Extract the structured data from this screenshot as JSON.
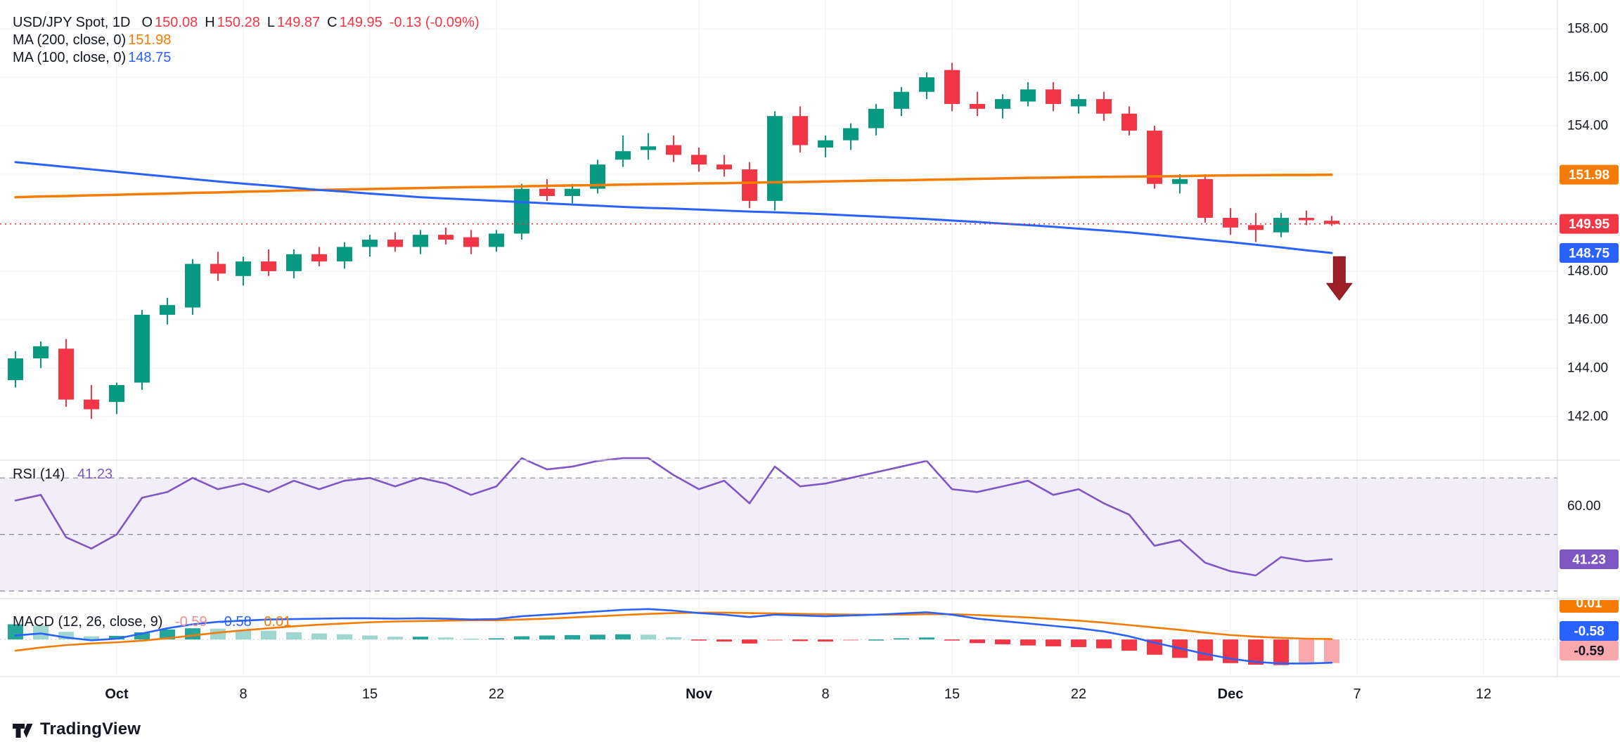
{
  "legend": {
    "title": "USD/JPY Spot, 1D",
    "ohlc": [
      {
        "k": "O",
        "v": "150.08"
      },
      {
        "k": "H",
        "v": "150.28"
      },
      {
        "k": "L",
        "v": "149.87"
      },
      {
        "k": "C",
        "v": "149.95"
      }
    ],
    "change": "-0.13 (-0.09%)",
    "ma_rows": [
      {
        "label": "MA (200, close, 0)",
        "value": "151.98"
      },
      {
        "label": "MA (100, close, 0)",
        "value": "148.75"
      }
    ]
  },
  "rsi_legend": {
    "label": "RSI (14)",
    "value": "41.23"
  },
  "macd_legend": {
    "label": "MACD (12, 26, close, 9)",
    "values": [
      {
        "text": "-0.59"
      },
      {
        "text": "-0.58"
      },
      {
        "text": "0.01"
      }
    ]
  },
  "footer": {
    "brand": "TradingView"
  },
  "colors": {
    "up": "#089981",
    "down": "#f23645",
    "ma200": "#f57c00",
    "ma100": "#2962ff",
    "rsi": "#7e57c2",
    "macd_line": "#2962ff",
    "signal_line": "#f57c00",
    "hist_pos": "#26a69a",
    "hist_pos_weak": "#9fd6cf",
    "hist_neg": "#f23645",
    "hist_neg_weak": "#f9a8ae",
    "last_price": "#f23645",
    "band_fill": "rgba(126,87,194,0.10)",
    "band_dash": "#83868f",
    "grid": "#f0f3fa",
    "axis_text": "#131722",
    "separator": "#d6d9e0",
    "arrow": "#9c1f28"
  },
  "chart_data": {
    "type": "candlestick",
    "title": "USD/JPY Spot, 1D",
    "ohlc_legend": {
      "open": 150.08,
      "high": 150.28,
      "low": 149.87,
      "close": 149.95,
      "change": -0.13,
      "change_pct": -0.09
    },
    "overlays": [
      {
        "name": "MA (200, close, 0)",
        "value": 151.98
      },
      {
        "name": "MA (100, close, 0)",
        "value": 148.75
      }
    ],
    "price_pane": {
      "ylim": [
        140.4,
        158.9
      ],
      "grid_ticks": [
        142,
        144,
        146,
        148,
        150,
        152,
        154,
        156,
        158
      ],
      "label_ticks": [
        {
          "value": 158,
          "label": "158.00"
        },
        {
          "value": 156,
          "label": "156.00"
        },
        {
          "value": 154,
          "label": "154.00"
        },
        {
          "value": 148,
          "label": "148.00"
        },
        {
          "value": 146,
          "label": "146.00"
        },
        {
          "value": 144,
          "label": "144.00"
        },
        {
          "value": 142,
          "label": "142.00"
        }
      ],
      "badges": [
        {
          "value": 151.98,
          "label": "151.98",
          "bg": "#f57c00",
          "fg": "#ffffff"
        },
        {
          "value": 149.95,
          "label": "149.95",
          "bg": "#f23645",
          "fg": "#ffffff"
        },
        {
          "value": 148.75,
          "label": "148.75",
          "bg": "#2962ff",
          "fg": "#ffffff"
        }
      ],
      "last_price": 149.95
    },
    "candles": [
      [
        143.5,
        144.7,
        143.2,
        144.4
      ],
      [
        144.4,
        145.1,
        144.0,
        144.9
      ],
      [
        144.8,
        145.2,
        142.4,
        142.7
      ],
      [
        142.7,
        143.3,
        141.9,
        142.3
      ],
      [
        142.6,
        143.4,
        142.1,
        143.3
      ],
      [
        143.4,
        146.4,
        143.1,
        146.2
      ],
      [
        146.2,
        146.9,
        145.8,
        146.6
      ],
      [
        146.5,
        148.5,
        146.2,
        148.3
      ],
      [
        148.3,
        148.8,
        147.6,
        147.9
      ],
      [
        147.8,
        148.6,
        147.4,
        148.4
      ],
      [
        148.4,
        148.9,
        147.8,
        148.0
      ],
      [
        148.0,
        148.9,
        147.7,
        148.7
      ],
      [
        148.7,
        149.0,
        148.2,
        148.4
      ],
      [
        148.4,
        149.2,
        148.1,
        149.0
      ],
      [
        149.0,
        149.5,
        148.6,
        149.3
      ],
      [
        149.3,
        149.6,
        148.8,
        149.0
      ],
      [
        149.0,
        149.7,
        148.7,
        149.5
      ],
      [
        149.5,
        149.8,
        149.1,
        149.3
      ],
      [
        149.4,
        149.7,
        148.7,
        149.0
      ],
      [
        149.0,
        149.7,
        148.8,
        149.55
      ],
      [
        149.55,
        151.6,
        149.3,
        151.4
      ],
      [
        151.4,
        151.8,
        150.9,
        151.1
      ],
      [
        151.1,
        151.6,
        150.8,
        151.4
      ],
      [
        151.4,
        152.6,
        151.2,
        152.4
      ],
      [
        152.6,
        153.6,
        152.3,
        152.95
      ],
      [
        153.0,
        153.7,
        152.6,
        153.15
      ],
      [
        153.2,
        153.6,
        152.5,
        152.8
      ],
      [
        152.8,
        153.1,
        152.1,
        152.4
      ],
      [
        152.4,
        152.8,
        151.9,
        152.2
      ],
      [
        152.2,
        152.5,
        150.6,
        150.9
      ],
      [
        150.9,
        154.6,
        150.5,
        154.4
      ],
      [
        154.4,
        154.8,
        152.9,
        153.2
      ],
      [
        153.1,
        153.6,
        152.7,
        153.4
      ],
      [
        153.4,
        154.1,
        153.0,
        153.9
      ],
      [
        153.9,
        154.9,
        153.6,
        154.7
      ],
      [
        154.7,
        155.6,
        154.4,
        155.4
      ],
      [
        155.4,
        156.2,
        155.1,
        156.0
      ],
      [
        156.3,
        156.6,
        154.6,
        154.9
      ],
      [
        154.9,
        155.4,
        154.4,
        154.7
      ],
      [
        154.7,
        155.3,
        154.3,
        155.1
      ],
      [
        155.0,
        155.8,
        154.8,
        155.5
      ],
      [
        155.5,
        155.8,
        154.6,
        154.9
      ],
      [
        154.8,
        155.3,
        154.5,
        155.1
      ],
      [
        155.1,
        155.4,
        154.2,
        154.5
      ],
      [
        154.5,
        154.8,
        153.6,
        153.8
      ],
      [
        153.8,
        154.0,
        151.4,
        151.6
      ],
      [
        151.6,
        152.0,
        151.2,
        151.8
      ],
      [
        151.8,
        152.0,
        150.0,
        150.2
      ],
      [
        150.2,
        150.6,
        149.5,
        149.8
      ],
      [
        149.9,
        150.4,
        149.2,
        149.7
      ],
      [
        149.6,
        150.4,
        149.4,
        150.2
      ],
      [
        150.2,
        150.5,
        149.9,
        150.1
      ],
      [
        150.08,
        150.28,
        149.87,
        149.95
      ]
    ],
    "ma200": [
      151.05,
      151.08,
      151.1,
      151.13,
      151.15,
      151.18,
      151.2,
      151.23,
      151.25,
      151.28,
      151.3,
      151.33,
      151.35,
      151.37,
      151.39,
      151.41,
      151.43,
      151.45,
      151.47,
      151.48,
      151.5,
      151.52,
      151.54,
      151.55,
      151.57,
      151.59,
      151.6,
      151.62,
      151.63,
      151.65,
      151.67,
      151.68,
      151.7,
      151.72,
      151.74,
      151.75,
      151.77,
      151.79,
      151.81,
      151.83,
      151.85,
      151.86,
      151.88,
      151.89,
      151.9,
      151.91,
      151.92,
      151.94,
      151.95,
      151.96,
      151.97,
      151.97,
      151.98
    ],
    "ma100": [
      152.5,
      152.4,
      152.3,
      152.2,
      152.1,
      152.0,
      151.9,
      151.8,
      151.7,
      151.61,
      151.53,
      151.44,
      151.35,
      151.28,
      151.2,
      151.13,
      151.05,
      151.0,
      150.95,
      150.9,
      150.85,
      150.8,
      150.75,
      150.7,
      150.65,
      150.61,
      150.58,
      150.54,
      150.5,
      150.46,
      150.43,
      150.39,
      150.35,
      150.3,
      150.25,
      150.2,
      150.15,
      150.09,
      150.03,
      149.96,
      149.9,
      149.83,
      149.75,
      149.68,
      149.6,
      149.5,
      149.4,
      149.3,
      149.2,
      149.09,
      148.98,
      148.86,
      148.75
    ],
    "rsi_pane": {
      "label": "RSI (14)",
      "last": 41.23,
      "ylim": [
        27.3,
        77
      ],
      "bands": [
        70,
        50,
        30
      ],
      "tick_labels": [
        {
          "value": 60,
          "label": "60.00"
        }
      ],
      "badge": {
        "value": 41.23,
        "label": "41.23",
        "bg": "#7e57c2",
        "fg": "#ffffff"
      },
      "values": [
        62,
        64,
        49,
        45,
        50,
        63,
        65,
        70,
        66,
        68,
        65,
        69,
        66,
        69,
        70,
        67,
        70,
        68,
        64,
        67,
        77,
        73,
        74,
        76,
        77,
        77,
        71,
        66,
        69,
        61,
        74,
        67,
        68,
        70,
        72,
        74,
        76,
        66,
        65,
        67,
        69,
        64,
        66,
        61,
        57,
        46,
        48,
        40,
        37,
        35.5,
        42,
        40.5,
        41.23
      ]
    },
    "macd_pane": {
      "label": "MACD (12, 26, close, 9)",
      "ylim": [
        -0.91,
        0.95
      ],
      "legend_values": {
        "histogram": -0.59,
        "macd": -0.58,
        "signal": 0.01
      },
      "macd": [
        0.1,
        0.15,
        0.05,
        -0.02,
        0.02,
        0.15,
        0.28,
        0.38,
        0.44,
        0.47,
        0.5,
        0.51,
        0.52,
        0.53,
        0.53,
        0.52,
        0.53,
        0.52,
        0.5,
        0.51,
        0.58,
        0.62,
        0.66,
        0.7,
        0.74,
        0.76,
        0.72,
        0.66,
        0.62,
        0.56,
        0.62,
        0.6,
        0.58,
        0.6,
        0.62,
        0.65,
        0.68,
        0.62,
        0.52,
        0.46,
        0.4,
        0.34,
        0.28,
        0.2,
        0.08,
        -0.08,
        -0.22,
        -0.36,
        -0.48,
        -0.56,
        -0.6,
        -0.6,
        -0.58
      ],
      "signal": [
        -0.28,
        -0.2,
        -0.14,
        -0.1,
        -0.07,
        -0.03,
        0.03,
        0.1,
        0.17,
        0.23,
        0.28,
        0.33,
        0.37,
        0.4,
        0.43,
        0.45,
        0.46,
        0.47,
        0.48,
        0.48,
        0.5,
        0.52,
        0.55,
        0.58,
        0.61,
        0.64,
        0.66,
        0.67,
        0.67,
        0.66,
        0.65,
        0.64,
        0.63,
        0.62,
        0.62,
        0.62,
        0.63,
        0.63,
        0.61,
        0.58,
        0.55,
        0.51,
        0.47,
        0.42,
        0.36,
        0.3,
        0.24,
        0.17,
        0.11,
        0.07,
        0.04,
        0.02,
        0.01
      ],
      "badges": [
        {
          "label": "0.01",
          "bg": "#f57c00",
          "fg": "#ffffff",
          "clipped": true
        },
        {
          "label": "-0.58",
          "bg": "#2962ff",
          "fg": "#ffffff",
          "clipped": false
        },
        {
          "label": "-0.59",
          "bg": "#f9a8ae",
          "fg": "#131722",
          "clipped": false
        }
      ]
    },
    "time_axis": {
      "labels": [
        {
          "text": "Oct",
          "index": 4,
          "major": true
        },
        {
          "text": "8",
          "index": 9,
          "major": false
        },
        {
          "text": "15",
          "index": 14,
          "major": false
        },
        {
          "text": "22",
          "index": 19,
          "major": false
        },
        {
          "text": "Nov",
          "index": 27,
          "major": true
        },
        {
          "text": "8",
          "index": 32,
          "major": false
        },
        {
          "text": "15",
          "index": 37,
          "major": false
        },
        {
          "text": "22",
          "index": 42,
          "major": false
        },
        {
          "text": "Dec",
          "index": 48,
          "major": true
        },
        {
          "text": "7",
          "index": 53,
          "major": false
        },
        {
          "text": "12",
          "index": 58,
          "major": false
        }
      ]
    },
    "annotation": {
      "type": "arrow_down",
      "index": 52.3,
      "price_top": 148.6,
      "price_bottom": 146.8,
      "color": "#9c1f28"
    }
  }
}
